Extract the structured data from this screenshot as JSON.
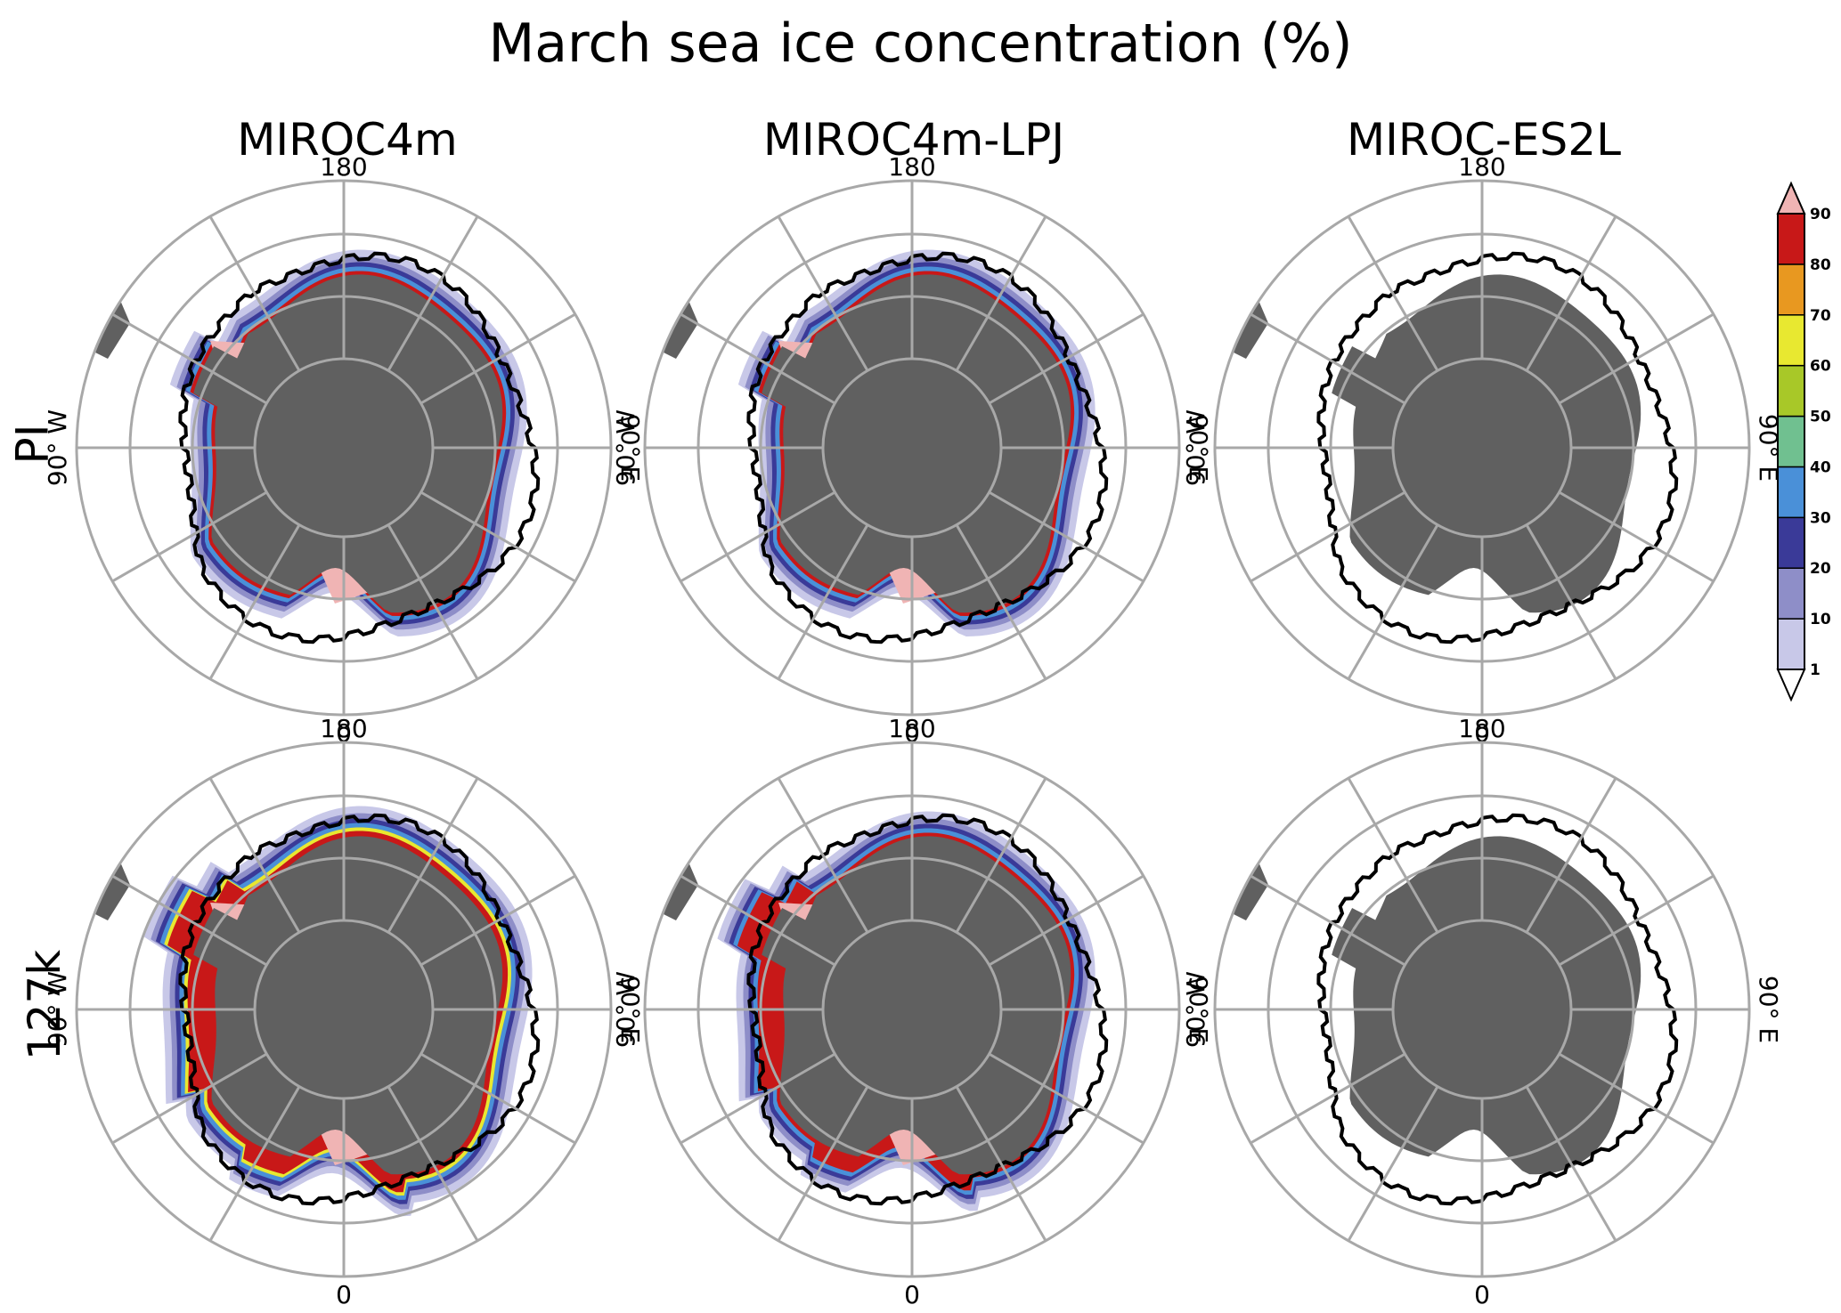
{
  "title": "March sea ice concentration (%)",
  "columns": [
    "MIROC4m",
    "MIROC4m-LPJ",
    "MIROC-ES2L"
  ],
  "rows": [
    "PI",
    "127k"
  ],
  "longitude_labels": {
    "top": "180",
    "bottom": "0",
    "left": "90° W",
    "right": "90° E"
  },
  "colorbar": {
    "levels": [
      "1",
      "10",
      "20",
      "30",
      "40",
      "50",
      "60",
      "70",
      "80",
      "90"
    ],
    "colors": [
      "#c8c8e8",
      "#8e8ec8",
      "#3a3a98",
      "#4a90d8",
      "#70c090",
      "#a8c828",
      "#e8e830",
      "#e89820",
      "#c81818",
      "#f0b4b4"
    ],
    "over_color": "#f0b4b4",
    "under_color": "#ffffff"
  },
  "colors": {
    "land": "#606060",
    "grid": "#a8a8a8",
    "contour": "#000000"
  }
}
